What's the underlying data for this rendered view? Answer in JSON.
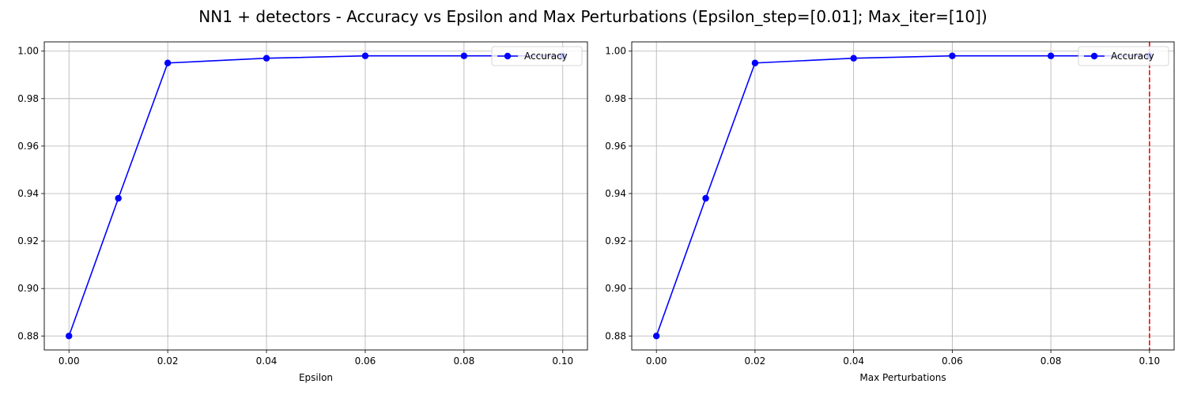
{
  "figure": {
    "suptitle": "NN1 + detectors - Accuracy vs Epsilon and Max Perturbations (Epsilon_step=[0.01]; Max_iter=[10])"
  },
  "chart_data": [
    {
      "type": "line",
      "title": "",
      "xlabel": "Epsilon",
      "ylabel": "",
      "xlim": [
        -0.005,
        0.105
      ],
      "ylim": [
        0.8741,
        1.0039
      ],
      "xticks": [
        0.0,
        0.02,
        0.04,
        0.06,
        0.08,
        0.1
      ],
      "xtick_labels": [
        "0.00",
        "0.02",
        "0.04",
        "0.06",
        "0.08",
        "0.10"
      ],
      "yticks": [
        0.88,
        0.9,
        0.92,
        0.94,
        0.96,
        0.98,
        1.0
      ],
      "ytick_labels": [
        "0.88",
        "0.90",
        "0.92",
        "0.94",
        "0.96",
        "0.98",
        "1.00"
      ],
      "grid": true,
      "legend_position": "top-right",
      "series": [
        {
          "name": "Accuracy",
          "color": "#0000ff",
          "marker": "circle",
          "x": [
            0.0,
            0.01,
            0.02,
            0.04,
            0.06,
            0.08,
            0.1
          ],
          "y": [
            0.88,
            0.938,
            0.995,
            0.997,
            0.998,
            0.998,
            0.998
          ]
        }
      ],
      "vlines": []
    },
    {
      "type": "line",
      "title": "",
      "xlabel": "Max Perturbations",
      "ylabel": "",
      "xlim": [
        -0.005,
        0.105
      ],
      "ylim": [
        0.8741,
        1.0039
      ],
      "xticks": [
        0.0,
        0.02,
        0.04,
        0.06,
        0.08,
        0.1
      ],
      "xtick_labels": [
        "0.00",
        "0.02",
        "0.04",
        "0.06",
        "0.08",
        "0.10"
      ],
      "yticks": [
        0.88,
        0.9,
        0.92,
        0.94,
        0.96,
        0.98,
        1.0
      ],
      "ytick_labels": [
        "0.88",
        "0.90",
        "0.92",
        "0.94",
        "0.96",
        "0.98",
        "1.00"
      ],
      "grid": true,
      "legend_position": "top-right",
      "series": [
        {
          "name": "Accuracy",
          "color": "#0000ff",
          "marker": "circle",
          "x": [
            0.0,
            0.01,
            0.02,
            0.04,
            0.06,
            0.08,
            0.1
          ],
          "y": [
            0.88,
            0.938,
            0.995,
            0.997,
            0.998,
            0.998,
            0.998
          ]
        }
      ],
      "vlines": [
        {
          "x": 0.1,
          "color": "#ff0000",
          "style": "dashed"
        }
      ]
    }
  ]
}
